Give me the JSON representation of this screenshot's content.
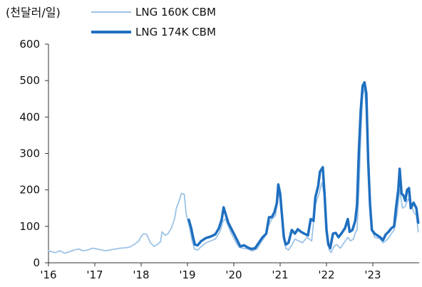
{
  "chart_data": {
    "type": "line",
    "unit_label": "(천달러/일)",
    "y_ticks": [
      "0",
      "100",
      "200",
      "300",
      "400",
      "500",
      "600"
    ],
    "x_ticks": [
      "'16",
      "'17",
      "'18",
      "'19",
      "'20",
      "'21",
      "'22",
      "'23"
    ],
    "ylim": [
      0,
      600
    ],
    "xlim": [
      2016.0,
      2024.0
    ],
    "grid": false,
    "legend_position": "top",
    "series": [
      {
        "name": "LNG 160K CBM",
        "color": "#9DC3E6",
        "points": [
          [
            2016.0,
            33
          ],
          [
            2016.08,
            30
          ],
          [
            2016.15,
            28
          ],
          [
            2016.25,
            33
          ],
          [
            2016.35,
            26
          ],
          [
            2016.45,
            30
          ],
          [
            2016.55,
            35
          ],
          [
            2016.65,
            38
          ],
          [
            2016.75,
            33
          ],
          [
            2016.85,
            35
          ],
          [
            2016.95,
            40
          ],
          [
            2017.05,
            38
          ],
          [
            2017.15,
            35
          ],
          [
            2017.25,
            33
          ],
          [
            2017.35,
            36
          ],
          [
            2017.45,
            38
          ],
          [
            2017.55,
            40
          ],
          [
            2017.65,
            41
          ],
          [
            2017.75,
            43
          ],
          [
            2017.85,
            50
          ],
          [
            2017.95,
            60
          ],
          [
            2018.0,
            72
          ],
          [
            2018.05,
            80
          ],
          [
            2018.12,
            78
          ],
          [
            2018.2,
            55
          ],
          [
            2018.28,
            45
          ],
          [
            2018.35,
            50
          ],
          [
            2018.42,
            58
          ],
          [
            2018.45,
            85
          ],
          [
            2018.52,
            75
          ],
          [
            2018.58,
            80
          ],
          [
            2018.65,
            95
          ],
          [
            2018.72,
            120
          ],
          [
            2018.76,
            150
          ],
          [
            2018.82,
            170
          ],
          [
            2018.87,
            190
          ],
          [
            2018.93,
            188
          ],
          [
            2018.97,
            135
          ],
          [
            2019.05,
            95
          ],
          [
            2019.1,
            60
          ],
          [
            2019.15,
            38
          ],
          [
            2019.22,
            35
          ],
          [
            2019.3,
            45
          ],
          [
            2019.4,
            55
          ],
          [
            2019.5,
            60
          ],
          [
            2019.6,
            65
          ],
          [
            2019.7,
            85
          ],
          [
            2019.77,
            115
          ],
          [
            2019.82,
            120
          ],
          [
            2019.88,
            100
          ],
          [
            2019.95,
            80
          ],
          [
            2020.05,
            55
          ],
          [
            2020.12,
            42
          ],
          [
            2020.2,
            40
          ],
          [
            2020.3,
            38
          ],
          [
            2020.4,
            32
          ],
          [
            2020.5,
            38
          ],
          [
            2020.58,
            55
          ],
          [
            2020.66,
            70
          ],
          [
            2020.74,
            100
          ],
          [
            2020.82,
            120
          ],
          [
            2020.9,
            130
          ],
          [
            2020.96,
            190
          ],
          [
            2021.02,
            170
          ],
          [
            2021.08,
            80
          ],
          [
            2021.12,
            40
          ],
          [
            2021.18,
            35
          ],
          [
            2021.25,
            48
          ],
          [
            2021.32,
            65
          ],
          [
            2021.4,
            60
          ],
          [
            2021.48,
            55
          ],
          [
            2021.58,
            70
          ],
          [
            2021.68,
            60
          ],
          [
            2021.76,
            160
          ],
          [
            2021.84,
            190
          ],
          [
            2021.9,
            220
          ],
          [
            2021.96,
            180
          ],
          [
            2022.02,
            80
          ],
          [
            2022.06,
            35
          ],
          [
            2022.1,
            28
          ],
          [
            2022.16,
            45
          ],
          [
            2022.22,
            50
          ],
          [
            2022.3,
            40
          ],
          [
            2022.38,
            55
          ],
          [
            2022.46,
            70
          ],
          [
            2022.52,
            60
          ],
          [
            2022.58,
            65
          ],
          [
            2022.63,
            85
          ],
          [
            2022.66,
            90
          ],
          [
            2022.7,
            200
          ],
          [
            2022.74,
            350
          ],
          [
            2022.78,
            460
          ],
          [
            2022.82,
            480
          ],
          [
            2022.86,
            420
          ],
          [
            2022.9,
            250
          ],
          [
            2022.94,
            150
          ],
          [
            2022.98,
            90
          ],
          [
            2023.04,
            70
          ],
          [
            2023.1,
            68
          ],
          [
            2023.16,
            65
          ],
          [
            2023.22,
            55
          ],
          [
            2023.28,
            60
          ],
          [
            2023.34,
            68
          ],
          [
            2023.4,
            80
          ],
          [
            2023.46,
            90
          ],
          [
            2023.52,
            130
          ],
          [
            2023.58,
            200
          ],
          [
            2023.64,
            150
          ],
          [
            2023.7,
            155
          ],
          [
            2023.76,
            175
          ],
          [
            2023.82,
            165
          ],
          [
            2023.88,
            140
          ],
          [
            2023.94,
            130
          ],
          [
            2023.98,
            85
          ]
        ]
      },
      {
        "name": "LNG 174K CBM",
        "color": "#1F6FC0",
        "points": [
          [
            2019.03,
            118
          ],
          [
            2019.08,
            95
          ],
          [
            2019.12,
            70
          ],
          [
            2019.16,
            50
          ],
          [
            2019.22,
            48
          ],
          [
            2019.3,
            60
          ],
          [
            2019.4,
            68
          ],
          [
            2019.5,
            72
          ],
          [
            2019.6,
            78
          ],
          [
            2019.68,
            95
          ],
          [
            2019.74,
            120
          ],
          [
            2019.78,
            152
          ],
          [
            2019.82,
            135
          ],
          [
            2019.88,
            110
          ],
          [
            2019.94,
            95
          ],
          [
            2020.02,
            75
          ],
          [
            2020.08,
            60
          ],
          [
            2020.14,
            45
          ],
          [
            2020.22,
            48
          ],
          [
            2020.3,
            42
          ],
          [
            2020.38,
            38
          ],
          [
            2020.46,
            40
          ],
          [
            2020.54,
            55
          ],
          [
            2020.62,
            70
          ],
          [
            2020.7,
            80
          ],
          [
            2020.76,
            125
          ],
          [
            2020.82,
            125
          ],
          [
            2020.88,
            140
          ],
          [
            2020.93,
            165
          ],
          [
            2020.96,
            215
          ],
          [
            2021.0,
            190
          ],
          [
            2021.04,
            130
          ],
          [
            2021.08,
            70
          ],
          [
            2021.12,
            50
          ],
          [
            2021.18,
            55
          ],
          [
            2021.25,
            90
          ],
          [
            2021.32,
            80
          ],
          [
            2021.38,
            92
          ],
          [
            2021.45,
            85
          ],
          [
            2021.52,
            80
          ],
          [
            2021.6,
            75
          ],
          [
            2021.66,
            120
          ],
          [
            2021.72,
            115
          ],
          [
            2021.76,
            180
          ],
          [
            2021.82,
            210
          ],
          [
            2021.86,
            250
          ],
          [
            2021.92,
            262
          ],
          [
            2021.96,
            185
          ],
          [
            2022.0,
            90
          ],
          [
            2022.04,
            50
          ],
          [
            2022.08,
            40
          ],
          [
            2022.14,
            80
          ],
          [
            2022.2,
            82
          ],
          [
            2022.26,
            70
          ],
          [
            2022.32,
            80
          ],
          [
            2022.4,
            95
          ],
          [
            2022.46,
            120
          ],
          [
            2022.5,
            85
          ],
          [
            2022.56,
            90
          ],
          [
            2022.62,
            115
          ],
          [
            2022.66,
            160
          ],
          [
            2022.7,
            310
          ],
          [
            2022.74,
            420
          ],
          [
            2022.78,
            485
          ],
          [
            2022.82,
            495
          ],
          [
            2022.86,
            465
          ],
          [
            2022.9,
            280
          ],
          [
            2022.94,
            160
          ],
          [
            2022.98,
            90
          ],
          [
            2023.04,
            80
          ],
          [
            2023.1,
            75
          ],
          [
            2023.16,
            70
          ],
          [
            2023.22,
            62
          ],
          [
            2023.28,
            78
          ],
          [
            2023.34,
            85
          ],
          [
            2023.4,
            95
          ],
          [
            2023.46,
            100
          ],
          [
            2023.5,
            150
          ],
          [
            2023.55,
            200
          ],
          [
            2023.58,
            258
          ],
          [
            2023.62,
            190
          ],
          [
            2023.66,
            185
          ],
          [
            2023.7,
            170
          ],
          [
            2023.74,
            200
          ],
          [
            2023.78,
            205
          ],
          [
            2023.82,
            150
          ],
          [
            2023.88,
            165
          ],
          [
            2023.94,
            150
          ],
          [
            2023.98,
            110
          ]
        ]
      }
    ]
  }
}
